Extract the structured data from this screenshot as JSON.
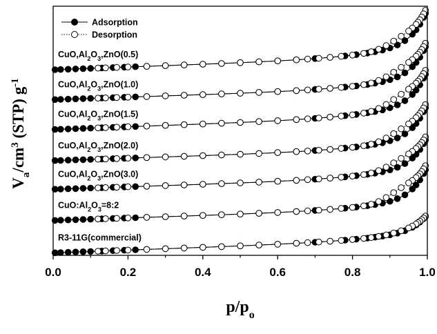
{
  "chart_data": {
    "type": "line",
    "xlabel": "p/p_o",
    "ylabel": "V_a/cm^3 (STP) g^-1",
    "xlim": [
      0.0,
      1.0
    ],
    "ylim": [
      0,
      10
    ],
    "x_ticks": [
      "0.0",
      "0.2",
      "0.4",
      "0.6",
      "0.8",
      "1.0"
    ],
    "y_ticks_shown": false,
    "legend": {
      "position": "top-left",
      "entries": [
        {
          "label": "Adsorption",
          "marker": "filled-circle",
          "line": "solid"
        },
        {
          "label": "Desorption",
          "marker": "open-circle",
          "line": "dotted"
        }
      ]
    },
    "series": [
      {
        "name": "CuO,Al2O3,ZnO(0.5)",
        "label_parts": [
          [
            "CuO,Al",
            false
          ],
          [
            "2",
            true
          ],
          [
            "O",
            false
          ],
          [
            "3",
            true
          ],
          [
            ",ZnO(0.5)",
            false
          ]
        ],
        "base": 7.45,
        "slope": 0.55,
        "jump": 1.35,
        "step": 0.55,
        "hyst": 0.28
      },
      {
        "name": "CuO,Al2O3,ZnO(1.0)",
        "label_parts": [
          [
            "CuO,Al",
            false
          ],
          [
            "2",
            true
          ],
          [
            "O",
            false
          ],
          [
            "3",
            true
          ],
          [
            ",ZnO(1.0)",
            false
          ]
        ],
        "base": 6.25,
        "slope": 0.5,
        "jump": 1.3,
        "step": 0.5,
        "hyst": 0.32
      },
      {
        "name": "CuO,Al2O3,ZnO(1.5)",
        "label_parts": [
          [
            "CuO,Al",
            false
          ],
          [
            "2",
            true
          ],
          [
            "O",
            false
          ],
          [
            "3",
            true
          ],
          [
            ",ZnO(1.5)",
            false
          ]
        ],
        "base": 5.05,
        "slope": 0.55,
        "jump": 1.3,
        "step": 0.55,
        "hyst": 0.36
      },
      {
        "name": "CuO,Al2O3,ZnO(2.0)",
        "label_parts": [
          [
            "CuO,Al",
            false
          ],
          [
            "2",
            true
          ],
          [
            "O",
            false
          ],
          [
            "3",
            true
          ],
          [
            ",ZnO(2.0)",
            false
          ]
        ],
        "base": 3.8,
        "slope": 0.5,
        "jump": 1.3,
        "step": 0.5,
        "hyst": 0.3
      },
      {
        "name": "CuO,Al2O3,ZnO(3.0)",
        "label_parts": [
          [
            "CuO,Al",
            false
          ],
          [
            "2",
            true
          ],
          [
            "O",
            false
          ],
          [
            "3",
            true
          ],
          [
            ",ZnO(3.0)",
            false
          ]
        ],
        "base": 2.65,
        "slope": 0.5,
        "jump": 1.15,
        "step": 0.48,
        "hyst": 0.3
      },
      {
        "name": "CuO:Al2O3=8:2",
        "label_parts": [
          [
            "CuO:Al",
            false
          ],
          [
            "2",
            true
          ],
          [
            "O",
            false
          ],
          [
            "3",
            true
          ],
          [
            "=8:2",
            false
          ]
        ],
        "base": 1.4,
        "slope": 0.5,
        "jump": 1.25,
        "step": 0.45,
        "hyst": 0.38
      },
      {
        "name": "R3-11G(commercial)",
        "label_parts": [
          [
            "R3-11G(commercial)",
            false
          ]
        ],
        "base": 0.1,
        "slope": 0.55,
        "jump": 0.65,
        "step": 0.35,
        "hyst": 0.05
      }
    ]
  }
}
